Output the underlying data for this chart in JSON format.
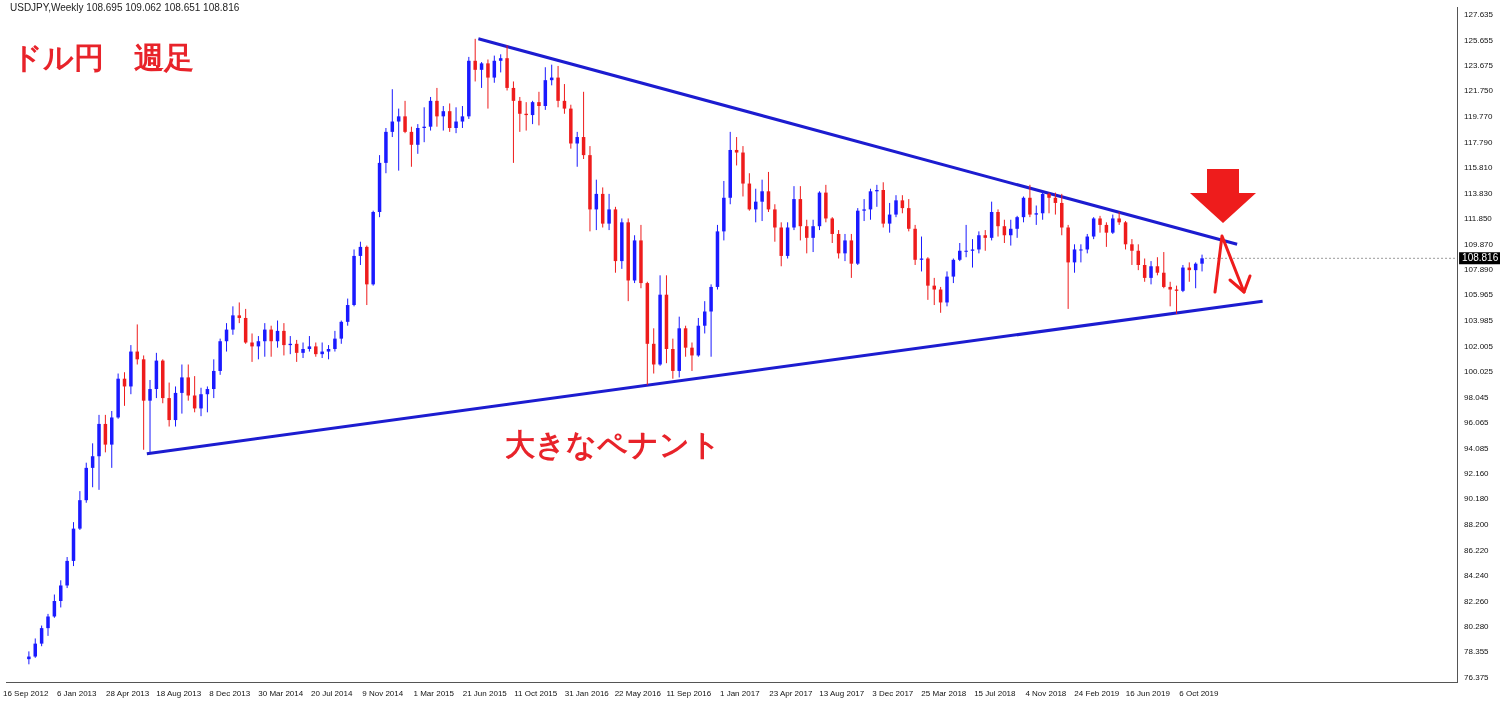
{
  "chart_data": {
    "type": "candlestick",
    "title": "ドル円　週足",
    "annotations": [
      "USDJPY,Weekly 108.695 109.062 108.651 108.816",
      "大きなペナント",
      {
        "text": "108.816",
        "x": "2019-10-13",
        "y": 108.816
      }
    ],
    "xlim": [
      "2012-08-05",
      "2021-04-25"
    ],
    "xticks": [
      {
        "value": "2012-09-16",
        "label": "16 Sep 2012"
      },
      {
        "value": "2013-01-06",
        "label": "6 Jan 2013"
      },
      {
        "value": "2013-04-28",
        "label": "28 Apr 2013"
      },
      {
        "value": "2013-08-18",
        "label": "18 Aug 2013"
      },
      {
        "value": "2013-12-08",
        "label": "8 Dec 2013"
      },
      {
        "value": "2014-03-30",
        "label": "30 Mar 2014"
      },
      {
        "value": "2014-07-20",
        "label": "20 Jul 2014"
      },
      {
        "value": "2014-11-09",
        "label": "9 Nov 2014"
      },
      {
        "value": "2015-03-01",
        "label": "1 Mar 2015"
      },
      {
        "value": "2015-06-21",
        "label": "21 Jun 2015"
      },
      {
        "value": "2015-10-11",
        "label": "11 Oct 2015"
      },
      {
        "value": "2016-01-31",
        "label": "31 Jan 2016"
      },
      {
        "value": "2016-05-22",
        "label": "22 May 2016"
      },
      {
        "value": "2016-09-11",
        "label": "11 Sep 2016"
      },
      {
        "value": "2017-01-01",
        "label": "1 Jan 2017"
      },
      {
        "value": "2017-04-23",
        "label": "23 Apr 2017"
      },
      {
        "value": "2017-08-13",
        "label": "13 Aug 2017"
      },
      {
        "value": "2017-12-03",
        "label": "3 Dec 2017"
      },
      {
        "value": "2018-03-25",
        "label": "25 Mar 2018"
      },
      {
        "value": "2018-07-15",
        "label": "15 Jul 2018"
      },
      {
        "value": "2018-11-04",
        "label": "4 Nov 2018"
      },
      {
        "value": "2019-02-24",
        "label": "24 Feb 2019"
      },
      {
        "value": "2019-06-16",
        "label": "16 Jun 2019"
      },
      {
        "value": "2019-10-06",
        "label": "6 Oct 2019"
      }
    ],
    "ylim": [
      76.0,
      128.2
    ],
    "yticks": [
      {
        "value": 76.375,
        "label": "76.375"
      },
      {
        "value": 78.355,
        "label": "78.355"
      },
      {
        "value": 80.28,
        "label": "80.280"
      },
      {
        "value": 82.26,
        "label": "82.260"
      },
      {
        "value": 84.24,
        "label": "84.240"
      },
      {
        "value": 86.22,
        "label": "86.220"
      },
      {
        "value": 88.2,
        "label": "88.200"
      },
      {
        "value": 90.18,
        "label": "90.180"
      },
      {
        "value": 92.16,
        "label": "92.160"
      },
      {
        "value": 94.085,
        "label": "94.085"
      },
      {
        "value": 96.065,
        "label": "96.065"
      },
      {
        "value": 98.045,
        "label": "98.045"
      },
      {
        "value": 100.025,
        "label": "100.025"
      },
      {
        "value": 102.005,
        "label": "102.005"
      },
      {
        "value": 103.985,
        "label": "103.985"
      },
      {
        "value": 105.965,
        "label": "105.965"
      },
      {
        "value": 107.89,
        "label": "107.890"
      },
      {
        "value": 109.87,
        "label": "109.870"
      },
      {
        "value": 111.85,
        "label": "111.850"
      },
      {
        "value": 113.83,
        "label": "113.830"
      },
      {
        "value": 115.81,
        "label": "115.810"
      },
      {
        "value": 117.79,
        "label": "117.790"
      },
      {
        "value": 119.77,
        "label": "119.770"
      },
      {
        "value": 121.75,
        "label": "121.750"
      },
      {
        "value": 123.675,
        "label": "123.675"
      },
      {
        "value": 125.655,
        "label": "125.655"
      },
      {
        "value": 127.635,
        "label": "127.635"
      }
    ],
    "grid": false,
    "legend": false,
    "x": [
      "2012-09-23",
      "2012-10-07",
      "2012-10-21",
      "2012-11-04",
      "2012-11-18",
      "2012-12-02",
      "2012-12-16",
      "2012-12-30",
      "2013-01-13",
      "2013-01-27",
      "2013-02-10",
      "2013-02-24",
      "2013-03-10",
      "2013-03-24",
      "2013-04-07",
      "2013-04-21",
      "2013-05-05",
      "2013-05-19",
      "2013-06-02",
      "2013-06-16",
      "2013-06-30",
      "2013-07-14",
      "2013-07-28",
      "2013-08-11",
      "2013-08-25",
      "2013-09-08",
      "2013-09-22",
      "2013-10-06",
      "2013-10-20",
      "2013-11-03",
      "2013-11-17",
      "2013-12-01",
      "2013-12-15",
      "2013-12-29",
      "2014-01-12",
      "2014-01-26",
      "2014-02-09",
      "2014-02-23",
      "2014-03-09",
      "2014-03-23",
      "2014-04-06",
      "2014-04-20",
      "2014-05-04",
      "2014-05-18",
      "2014-06-01",
      "2014-06-15",
      "2014-06-29",
      "2014-07-13",
      "2014-07-27",
      "2014-08-10",
      "2014-08-24",
      "2014-09-07",
      "2014-09-21",
      "2014-10-05",
      "2014-10-19",
      "2014-11-02",
      "2014-11-16",
      "2014-11-30",
      "2014-12-14",
      "2014-12-28",
      "2015-01-11",
      "2015-01-25",
      "2015-02-08",
      "2015-02-22",
      "2015-03-08",
      "2015-03-22",
      "2015-04-05",
      "2015-04-19",
      "2015-05-03",
      "2015-05-17",
      "2015-05-31",
      "2015-06-14",
      "2015-06-28",
      "2015-07-12",
      "2015-07-26",
      "2015-08-09",
      "2015-08-23",
      "2015-09-06",
      "2015-09-20",
      "2015-10-04",
      "2015-10-18",
      "2015-11-01",
      "2015-11-15",
      "2015-11-29",
      "2015-12-13",
      "2015-12-27",
      "2016-01-10",
      "2016-01-24",
      "2016-02-07",
      "2016-02-21",
      "2016-03-06",
      "2016-03-20",
      "2016-04-03",
      "2016-04-17",
      "2016-05-01",
      "2016-05-15",
      "2016-05-29",
      "2016-06-12",
      "2016-06-26",
      "2016-07-10",
      "2016-07-24",
      "2016-08-07",
      "2016-08-21",
      "2016-09-04",
      "2016-09-18",
      "2016-10-02",
      "2016-10-16",
      "2016-10-30",
      "2016-11-13",
      "2016-11-27",
      "2016-12-11",
      "2016-12-25",
      "2017-01-08",
      "2017-01-22",
      "2017-02-05",
      "2017-02-19",
      "2017-03-05",
      "2017-03-19",
      "2017-04-02",
      "2017-04-16",
      "2017-04-30",
      "2017-05-14",
      "2017-05-28",
      "2017-06-11",
      "2017-06-25",
      "2017-07-09",
      "2017-07-23",
      "2017-08-06",
      "2017-08-20",
      "2017-09-03",
      "2017-09-17",
      "2017-10-01",
      "2017-10-15",
      "2017-10-29",
      "2017-11-12",
      "2017-11-26",
      "2017-12-10",
      "2017-12-24",
      "2018-01-07",
      "2018-01-21",
      "2018-02-04",
      "2018-02-18",
      "2018-03-04",
      "2018-03-18",
      "2018-04-01",
      "2018-04-15",
      "2018-04-29",
      "2018-05-13",
      "2018-05-27",
      "2018-06-10",
      "2018-06-24",
      "2018-07-08",
      "2018-07-22",
      "2018-08-05",
      "2018-08-19",
      "2018-09-02",
      "2018-09-16",
      "2018-09-30",
      "2018-10-14",
      "2018-10-28",
      "2018-11-11",
      "2018-11-25",
      "2018-12-09",
      "2018-12-23",
      "2019-01-06",
      "2019-01-20",
      "2019-02-03",
      "2019-02-17",
      "2019-03-03",
      "2019-03-17",
      "2019-03-31",
      "2019-04-14",
      "2019-04-28",
      "2019-05-12",
      "2019-05-26",
      "2019-06-09",
      "2019-06-23",
      "2019-07-07",
      "2019-07-21",
      "2019-08-04",
      "2019-08-18",
      "2019-09-01",
      "2019-09-15",
      "2019-09-29",
      "2019-10-13"
    ],
    "ohlc": [
      [
        77.8,
        78.4,
        77.4,
        78.0
      ],
      [
        78.0,
        79.4,
        77.9,
        79.0
      ],
      [
        79.0,
        80.4,
        78.8,
        80.2
      ],
      [
        80.2,
        81.3,
        79.6,
        81.1
      ],
      [
        81.1,
        82.8,
        81.0,
        82.3
      ],
      [
        82.3,
        83.9,
        81.8,
        83.5
      ],
      [
        83.5,
        85.7,
        83.3,
        85.4
      ],
      [
        85.4,
        88.4,
        85.0,
        87.9
      ],
      [
        87.9,
        90.8,
        87.8,
        90.1
      ],
      [
        90.1,
        93.0,
        89.9,
        92.6
      ],
      [
        92.6,
        94.5,
        91.1,
        93.5
      ],
      [
        93.5,
        96.7,
        90.9,
        96.0
      ],
      [
        96.0,
        96.7,
        93.8,
        94.4
      ],
      [
        94.4,
        97.0,
        92.6,
        96.5
      ],
      [
        96.5,
        99.9,
        96.4,
        99.5
      ],
      [
        99.5,
        100.0,
        97.4,
        98.9
      ],
      [
        98.9,
        102.1,
        98.3,
        101.6
      ],
      [
        101.6,
        103.7,
        100.6,
        101.0
      ],
      [
        101.0,
        101.3,
        94.0,
        97.8
      ],
      [
        97.8,
        99.4,
        93.8,
        98.7
      ],
      [
        98.7,
        101.5,
        98.0,
        100.9
      ],
      [
        100.9,
        101.0,
        97.6,
        98.0
      ],
      [
        98.0,
        99.2,
        95.8,
        96.3
      ],
      [
        96.3,
        98.9,
        95.8,
        98.4
      ],
      [
        98.4,
        100.6,
        96.8,
        99.6
      ],
      [
        99.6,
        100.6,
        97.8,
        98.2
      ],
      [
        98.2,
        99.7,
        96.9,
        97.2
      ],
      [
        97.2,
        98.8,
        96.6,
        98.3
      ],
      [
        98.3,
        98.9,
        96.9,
        98.7
      ],
      [
        98.7,
        101.0,
        98.0,
        100.1
      ],
      [
        100.1,
        102.6,
        99.8,
        102.4
      ],
      [
        102.4,
        103.8,
        101.6,
        103.3
      ],
      [
        103.3,
        105.1,
        102.9,
        104.4
      ],
      [
        104.4,
        105.4,
        103.8,
        104.2
      ],
      [
        104.2,
        104.9,
        102.2,
        102.3
      ],
      [
        102.3,
        103.0,
        100.8,
        102.0
      ],
      [
        102.0,
        102.8,
        101.0,
        102.4
      ],
      [
        102.4,
        103.8,
        101.2,
        103.3
      ],
      [
        103.3,
        103.6,
        101.2,
        102.4
      ],
      [
        102.4,
        104.0,
        101.9,
        103.2
      ],
      [
        103.2,
        103.8,
        101.3,
        102.1
      ],
      [
        102.1,
        102.8,
        101.4,
        102.2
      ],
      [
        102.2,
        102.5,
        100.8,
        101.5
      ],
      [
        101.5,
        102.3,
        101.1,
        101.8
      ],
      [
        101.8,
        102.8,
        101.6,
        102.0
      ],
      [
        102.0,
        102.3,
        101.2,
        101.4
      ],
      [
        101.4,
        102.3,
        101.1,
        101.6
      ],
      [
        101.6,
        102.1,
        101.0,
        101.8
      ],
      [
        101.8,
        103.2,
        101.6,
        102.6
      ],
      [
        102.6,
        104.0,
        102.2,
        103.9
      ],
      [
        103.9,
        105.7,
        103.6,
        105.2
      ],
      [
        105.2,
        109.5,
        105.1,
        109.0
      ],
      [
        109.0,
        110.1,
        108.3,
        109.7
      ],
      [
        109.7,
        109.8,
        105.2,
        106.8
      ],
      [
        106.8,
        112.5,
        106.7,
        112.4
      ],
      [
        112.4,
        116.8,
        112.0,
        116.2
      ],
      [
        116.2,
        118.9,
        115.4,
        118.6
      ],
      [
        118.6,
        121.9,
        118.2,
        119.4
      ],
      [
        119.4,
        120.4,
        115.6,
        119.8
      ],
      [
        119.8,
        121.0,
        118.5,
        118.6
      ],
      [
        118.6,
        119.0,
        115.9,
        117.6
      ],
      [
        117.6,
        119.2,
        116.9,
        118.9
      ],
      [
        118.9,
        120.5,
        117.8,
        119.0
      ],
      [
        119.0,
        121.3,
        118.7,
        121.0
      ],
      [
        121.0,
        122.0,
        119.0,
        119.8
      ],
      [
        119.8,
        120.6,
        118.7,
        120.2
      ],
      [
        120.2,
        120.8,
        118.6,
        118.9
      ],
      [
        118.9,
        120.5,
        118.5,
        119.4
      ],
      [
        119.4,
        120.6,
        118.9,
        119.8
      ],
      [
        119.8,
        124.4,
        119.6,
        124.1
      ],
      [
        124.1,
        125.8,
        122.5,
        123.4
      ],
      [
        123.4,
        124.0,
        122.0,
        123.9
      ],
      [
        123.9,
        124.2,
        120.4,
        122.8
      ],
      [
        122.8,
        124.5,
        122.4,
        124.1
      ],
      [
        124.1,
        124.6,
        123.2,
        124.3
      ],
      [
        124.3,
        125.3,
        121.8,
        122.0
      ],
      [
        122.0,
        122.5,
        116.2,
        121.0
      ],
      [
        121.0,
        121.3,
        118.6,
        120.0
      ],
      [
        120.0,
        120.9,
        118.7,
        119.9
      ],
      [
        119.9,
        121.0,
        119.2,
        120.9
      ],
      [
        120.9,
        121.7,
        119.1,
        120.6
      ],
      [
        120.6,
        123.6,
        120.3,
        122.6
      ],
      [
        122.6,
        123.8,
        122.2,
        122.8
      ],
      [
        122.8,
        123.7,
        120.5,
        121.0
      ],
      [
        121.0,
        122.3,
        120.0,
        120.4
      ],
      [
        120.4,
        120.7,
        117.3,
        117.7
      ],
      [
        117.7,
        118.6,
        115.9,
        118.2
      ],
      [
        118.2,
        121.7,
        116.5,
        116.8
      ],
      [
        116.8,
        117.5,
        110.9,
        112.6
      ],
      [
        112.6,
        114.9,
        111.0,
        113.8
      ],
      [
        113.8,
        114.3,
        111.2,
        111.5
      ],
      [
        111.5,
        113.8,
        111.0,
        112.6
      ],
      [
        112.6,
        112.8,
        107.7,
        108.6
      ],
      [
        108.6,
        111.9,
        108.0,
        111.6
      ],
      [
        111.6,
        111.9,
        105.5,
        107.1
      ],
      [
        107.1,
        110.6,
        106.9,
        110.2
      ],
      [
        110.2,
        111.4,
        106.5,
        106.9
      ],
      [
        106.9,
        107.0,
        99.0,
        102.2
      ],
      [
        102.2,
        103.4,
        99.9,
        100.6
      ],
      [
        100.6,
        107.5,
        100.5,
        106.0
      ],
      [
        106.0,
        107.5,
        100.7,
        101.8
      ],
      [
        101.8,
        102.6,
        99.5,
        100.1
      ],
      [
        100.1,
        104.3,
        99.6,
        103.4
      ],
      [
        103.4,
        103.6,
        101.2,
        101.9
      ],
      [
        101.9,
        102.3,
        100.1,
        101.3
      ],
      [
        101.3,
        104.2,
        101.2,
        103.6
      ],
      [
        103.6,
        105.5,
        103.0,
        104.7
      ],
      [
        104.7,
        106.8,
        101.2,
        106.6
      ],
      [
        106.6,
        111.4,
        106.4,
        110.9
      ],
      [
        110.9,
        114.8,
        110.2,
        113.5
      ],
      [
        113.5,
        118.6,
        113.0,
        117.2
      ],
      [
        117.2,
        118.2,
        116.0,
        117.0
      ],
      [
        117.0,
        117.5,
        113.6,
        114.6
      ],
      [
        114.6,
        115.4,
        112.5,
        112.6
      ],
      [
        112.6,
        114.2,
        111.6,
        113.2
      ],
      [
        113.2,
        114.9,
        111.7,
        114.0
      ],
      [
        114.0,
        115.5,
        112.4,
        112.6
      ],
      [
        112.6,
        113.0,
        110.1,
        111.2
      ],
      [
        111.2,
        111.6,
        108.2,
        109.0
      ],
      [
        109.0,
        111.6,
        108.8,
        111.2
      ],
      [
        111.2,
        114.4,
        111.0,
        113.4
      ],
      [
        113.4,
        114.4,
        110.2,
        111.3
      ],
      [
        111.3,
        111.8,
        109.2,
        110.4
      ],
      [
        110.4,
        111.8,
        109.3,
        111.3
      ],
      [
        111.3,
        114.0,
        111.0,
        113.9
      ],
      [
        113.9,
        114.5,
        111.6,
        111.9
      ],
      [
        111.9,
        112.0,
        110.0,
        110.7
      ],
      [
        110.7,
        111.0,
        108.8,
        109.2
      ],
      [
        109.2,
        110.7,
        108.6,
        110.2
      ],
      [
        110.2,
        110.7,
        107.3,
        108.4
      ],
      [
        108.4,
        112.7,
        108.3,
        112.5
      ],
      [
        112.5,
        113.4,
        111.7,
        112.6
      ],
      [
        112.6,
        114.2,
        111.8,
        114.0
      ],
      [
        114.0,
        114.5,
        112.8,
        114.1
      ],
      [
        114.1,
        114.7,
        111.2,
        111.5
      ],
      [
        111.5,
        113.1,
        110.8,
        112.2
      ],
      [
        112.2,
        113.7,
        112.0,
        113.3
      ],
      [
        113.3,
        113.7,
        112.3,
        112.7
      ],
      [
        112.7,
        113.4,
        110.9,
        111.1
      ],
      [
        111.1,
        111.4,
        108.3,
        108.7
      ],
      [
        108.7,
        110.5,
        107.8,
        108.8
      ],
      [
        108.8,
        108.9,
        105.6,
        106.7
      ],
      [
        106.7,
        107.3,
        105.2,
        106.4
      ],
      [
        106.4,
        106.6,
        104.6,
        105.4
      ],
      [
        105.4,
        107.8,
        105.1,
        107.4
      ],
      [
        107.4,
        108.8,
        106.9,
        108.7
      ],
      [
        108.7,
        110.0,
        108.6,
        109.4
      ],
      [
        109.4,
        111.4,
        108.9,
        109.4
      ],
      [
        109.4,
        110.3,
        108.1,
        109.5
      ],
      [
        109.5,
        110.9,
        109.2,
        110.6
      ],
      [
        110.6,
        111.0,
        109.4,
        110.4
      ],
      [
        110.4,
        113.2,
        110.2,
        112.4
      ],
      [
        112.4,
        112.6,
        110.5,
        111.3
      ],
      [
        111.3,
        111.8,
        110.0,
        110.6
      ],
      [
        110.6,
        111.8,
        109.8,
        111.1
      ],
      [
        111.1,
        112.1,
        110.4,
        112.0
      ],
      [
        112.0,
        113.6,
        111.6,
        113.5
      ],
      [
        113.5,
        114.5,
        112.0,
        112.2
      ],
      [
        112.2,
        112.9,
        111.4,
        112.3
      ],
      [
        112.3,
        114.0,
        111.8,
        113.8
      ],
      [
        113.8,
        113.9,
        112.3,
        113.5
      ],
      [
        113.5,
        113.9,
        112.2,
        113.1
      ],
      [
        113.1,
        113.8,
        110.6,
        111.2
      ],
      [
        111.2,
        111.4,
        104.9,
        108.5
      ],
      [
        108.5,
        109.9,
        107.7,
        109.5
      ],
      [
        109.5,
        109.9,
        108.5,
        109.5
      ],
      [
        109.5,
        110.7,
        109.2,
        110.5
      ],
      [
        110.5,
        112.0,
        110.3,
        111.9
      ],
      [
        111.9,
        112.1,
        110.8,
        111.4
      ],
      [
        111.4,
        111.6,
        109.7,
        110.8
      ],
      [
        110.8,
        112.2,
        110.7,
        111.9
      ],
      [
        111.9,
        112.4,
        111.4,
        111.6
      ],
      [
        111.6,
        111.7,
        109.5,
        109.9
      ],
      [
        109.9,
        110.3,
        108.3,
        109.4
      ],
      [
        109.4,
        109.9,
        107.9,
        108.3
      ],
      [
        108.3,
        108.8,
        107.0,
        107.3
      ],
      [
        107.3,
        108.6,
        106.8,
        108.2
      ],
      [
        108.2,
        108.9,
        107.5,
        107.7
      ],
      [
        107.7,
        109.3,
        106.5,
        106.6
      ],
      [
        106.6,
        107.0,
        105.1,
        106.4
      ],
      [
        106.4,
        106.7,
        104.5,
        106.3
      ],
      [
        106.3,
        108.3,
        106.2,
        108.1
      ],
      [
        108.1,
        108.5,
        107.0,
        107.9
      ],
      [
        107.9,
        108.5,
        106.5,
        108.4
      ],
      [
        108.4,
        109.1,
        107.8,
        108.816
      ]
    ],
    "series": [
      {
        "type": "line",
        "color": "#1c1cd0",
        "x": [
          "2015-06-07",
          "2019-12-29"
        ],
        "values": [
          125.8,
          109.9
        ]
      },
      {
        "type": "line",
        "color": "#1c1cd0",
        "x": [
          "2013-06-09",
          "2020-02-23"
        ],
        "values": [
          93.7,
          105.5
        ]
      }
    ]
  }
}
